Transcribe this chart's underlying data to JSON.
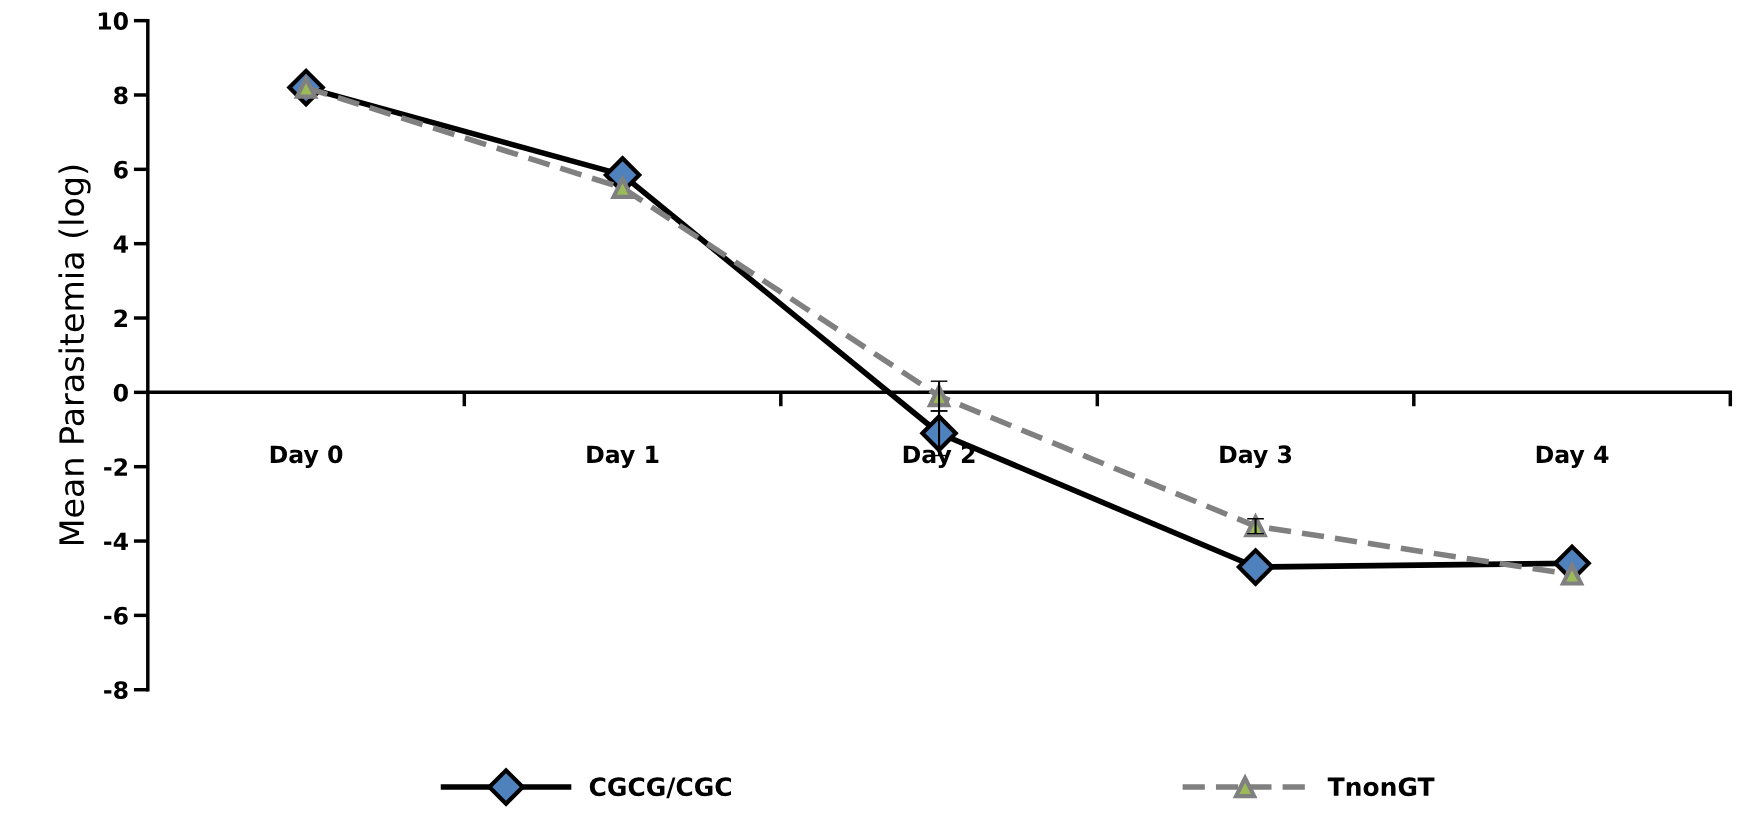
{
  "chart_data": {
    "type": "line",
    "ylabel": "Mean Parasitemia (log)",
    "categories": [
      "Day 0",
      "Day 1",
      "Day 2",
      "Day 3",
      "Day 4"
    ],
    "series": [
      {
        "name": "CGCG/CGC",
        "color": "#000000",
        "marker": "diamond",
        "line_style": "solid",
        "values": [
          8.2,
          5.85,
          -1.1,
          -4.7,
          -4.6
        ],
        "errors": [
          null,
          null,
          0.6,
          null,
          null
        ]
      },
      {
        "name": "TnonGT",
        "color": "#808080",
        "marker": "triangle",
        "line_style": "dashed",
        "values": [
          8.2,
          5.5,
          -0.1,
          -3.6,
          -4.9
        ],
        "errors": [
          null,
          null,
          0.4,
          0.2,
          null
        ]
      }
    ],
    "ylim": [
      -8,
      10
    ],
    "yticks": [
      -8,
      -6,
      -4,
      -2,
      0,
      2,
      4,
      6,
      8,
      10
    ],
    "grid": false,
    "legend": "bottom"
  }
}
